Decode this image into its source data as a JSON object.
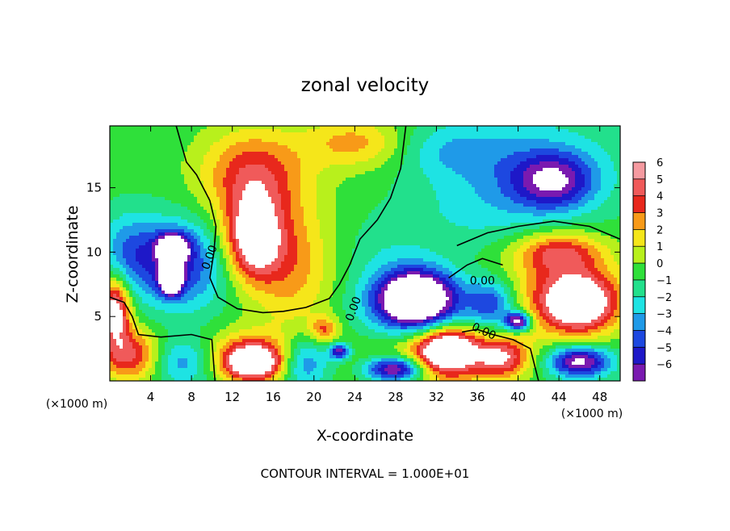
{
  "chart_data": {
    "type": "heatmap",
    "title": "zonal velocity",
    "xlabel": "X-coordinate",
    "ylabel": "Z-coordinate",
    "x_unit": "(×1000 m)",
    "x_ticks": [
      4,
      8,
      12,
      16,
      20,
      24,
      28,
      32,
      36,
      40,
      44,
      48
    ],
    "y_ticks": [
      5,
      10,
      15
    ],
    "xlim": [
      0,
      50
    ],
    "ylim": [
      0,
      19.8
    ],
    "colorbar": {
      "levels": [
        6,
        5,
        4,
        3,
        2,
        1,
        0,
        -1,
        -2,
        -3,
        -4,
        -5,
        -6
      ],
      "colors": [
        "#f59aa0",
        "#f05a5a",
        "#e8281c",
        "#f89a18",
        "#f5e61a",
        "#b8f01c",
        "#2fe03a",
        "#22e08c",
        "#1ee3e3",
        "#1f9ae8",
        "#1d48e0",
        "#1e18c8",
        "#7a1ab0"
      ]
    },
    "contour_label": "0.00",
    "footer": "CONTOUR INTERVAL = 1.000E+01",
    "blobs": [
      {
        "x": 20,
        "z": 10,
        "rx": 40,
        "rz": 20,
        "v": 0.5
      },
      {
        "x": 14,
        "z": 16,
        "rx": 5,
        "rz": 3.5,
        "v": 4.5
      },
      {
        "x": 14,
        "z": 11,
        "rx": 2.8,
        "rz": 3.2,
        "v": 7
      },
      {
        "x": 24,
        "z": 18.5,
        "rx": 5,
        "rz": 2,
        "v": 3
      },
      {
        "x": 18,
        "z": 9,
        "rx": 4,
        "rz": 5,
        "v": 3
      },
      {
        "x": 7,
        "z": 9,
        "rx": 4.5,
        "rz": 3.5,
        "v": -4.5
      },
      {
        "x": 6.2,
        "z": 10.3,
        "rx": 1.5,
        "rz": 1.1,
        "v": -8
      },
      {
        "x": 6,
        "z": 7.8,
        "rx": 1.1,
        "rz": 1.1,
        "v": -8
      },
      {
        "x": 2,
        "z": 10,
        "rx": 3,
        "rz": 3,
        "v": -3
      },
      {
        "x": 2,
        "z": 2,
        "rx": 3,
        "rz": 2,
        "v": 5
      },
      {
        "x": 0.5,
        "z": 5.5,
        "rx": 1.5,
        "rz": 2.5,
        "v": 7
      },
      {
        "x": 7,
        "z": 1.5,
        "rx": 3,
        "rz": 1.8,
        "v": -3
      },
      {
        "x": 14,
        "z": 1.3,
        "rx": 3,
        "rz": 1.4,
        "v": 7
      },
      {
        "x": 14,
        "z": 2.3,
        "rx": 4.5,
        "rz": 1.8,
        "v": 3
      },
      {
        "x": 19,
        "z": 1.5,
        "rx": 2.5,
        "rz": 2,
        "v": -4
      },
      {
        "x": 21,
        "z": 4,
        "rx": 1.4,
        "rz": 1,
        "v": 3.5
      },
      {
        "x": 22.5,
        "z": 2.3,
        "rx": 1,
        "rz": 0.6,
        "v": -6
      },
      {
        "x": 30,
        "z": 6.5,
        "rx": 3.5,
        "rz": 2,
        "v": -8
      },
      {
        "x": 30,
        "z": 5.5,
        "rx": 5.5,
        "rz": 3,
        "v": -4.5
      },
      {
        "x": 27,
        "z": 10,
        "rx": 5,
        "rz": 3,
        "v": -1
      },
      {
        "x": 33,
        "z": 2.5,
        "rx": 3,
        "rz": 1.7,
        "v": 7.5
      },
      {
        "x": 32,
        "z": 1.8,
        "rx": 7,
        "rz": 2.7,
        "v": 3.5
      },
      {
        "x": 28,
        "z": 0.9,
        "rx": 3,
        "rz": 1,
        "v": -8
      },
      {
        "x": 38.5,
        "z": 1.8,
        "rx": 2.5,
        "rz": 1.5,
        "v": 4.5
      },
      {
        "x": 37.5,
        "z": 6,
        "rx": 2.5,
        "rz": 2,
        "v": -4.5
      },
      {
        "x": 40,
        "z": 4.6,
        "rx": 1.2,
        "rz": 0.7,
        "v": -8
      },
      {
        "x": 46,
        "z": 6,
        "rx": 3.5,
        "rz": 2.2,
        "v": 7
      },
      {
        "x": 44,
        "z": 7,
        "rx": 7,
        "rz": 3.5,
        "v": 3
      },
      {
        "x": 44,
        "z": 10,
        "rx": 4,
        "rz": 1.5,
        "v": 4
      },
      {
        "x": 46,
        "z": 1.5,
        "rx": 3,
        "rz": 1.2,
        "v": -7
      },
      {
        "x": 43.5,
        "z": 15.5,
        "rx": 4,
        "rz": 2.2,
        "v": -5
      },
      {
        "x": 40,
        "z": 16.5,
        "rx": 9,
        "rz": 4,
        "v": -2.5
      },
      {
        "x": 36,
        "z": 12.5,
        "rx": 7,
        "rz": 3,
        "v": -1
      },
      {
        "x": 33,
        "z": 18,
        "rx": 5,
        "rz": 2,
        "v": -1.5
      }
    ],
    "zero_contours": [
      [
        [
          6.5,
          19.8
        ],
        [
          7.5,
          17
        ],
        [
          8.5,
          16
        ],
        [
          9.8,
          14
        ],
        [
          10.4,
          12
        ],
        [
          10.2,
          10
        ],
        [
          9.8,
          8
        ],
        [
          10.6,
          6.5
        ],
        [
          12.5,
          5.6
        ],
        [
          15,
          5.3
        ],
        [
          17,
          5.4
        ],
        [
          19.2,
          5.7
        ],
        [
          21.5,
          6.4
        ],
        [
          22.5,
          7.5
        ],
        [
          23.5,
          9
        ],
        [
          24.5,
          11
        ],
        [
          26.2,
          12.5
        ],
        [
          27.5,
          14.2
        ],
        [
          28.5,
          16.5
        ],
        [
          29,
          19.8
        ]
      ],
      [
        [
          0,
          6.5
        ],
        [
          1.4,
          6.1
        ],
        [
          2.2,
          5
        ],
        [
          2.8,
          3.6
        ],
        [
          5,
          3.4
        ],
        [
          8,
          3.6
        ],
        [
          10,
          3.2
        ],
        [
          10.3,
          0
        ]
      ],
      [
        [
          34,
          10.5
        ],
        [
          37,
          11.5
        ],
        [
          40,
          12
        ],
        [
          43.5,
          12.4
        ],
        [
          47,
          12
        ],
        [
          50,
          11
        ]
      ],
      [
        [
          33.2,
          8
        ],
        [
          35,
          9
        ],
        [
          36.5,
          9.5
        ],
        [
          38.5,
          9
        ]
      ],
      [
        [
          34.5,
          3.8
        ],
        [
          36,
          4
        ],
        [
          37.5,
          3.6
        ],
        [
          39.5,
          3.2
        ],
        [
          41.2,
          2.5
        ],
        [
          42,
          0
        ]
      ]
    ],
    "contour_labels": [
      {
        "x": 10.1,
        "z": 9.5,
        "rot": -70
      },
      {
        "x": 36.5,
        "z": 7.5,
        "rot": 0
      },
      {
        "x": 24.2,
        "z": 5.5,
        "rot": -70
      },
      {
        "x": 36.5,
        "z": 3.6,
        "rot": 25
      }
    ]
  }
}
